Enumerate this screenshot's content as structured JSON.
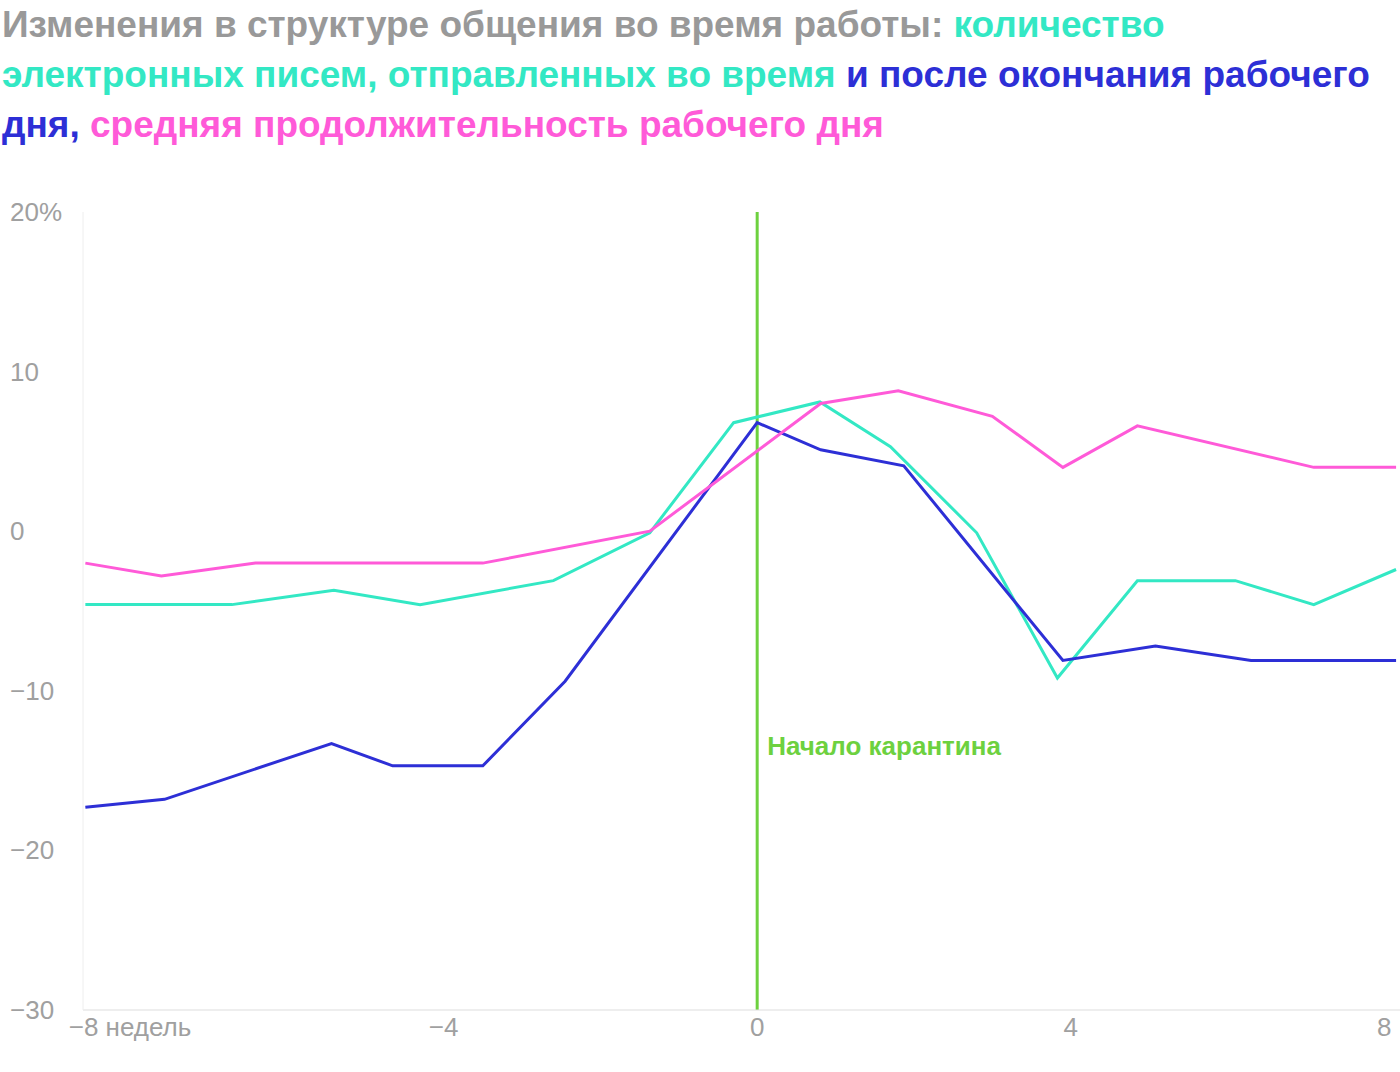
{
  "chart_data": {
    "type": "line",
    "title": "Изменения в структуре общения во время работы:",
    "series": [
      {
        "name": "количество электронных писем, отправленных во время",
        "color": "#33e8c4",
        "x": [
          -8.57,
          -6.7,
          -5.4,
          -4.3,
          -2.6,
          -1.37,
          -0.3,
          0.8,
          1.7,
          2.8,
          3.83,
          4.85,
          6.1,
          7.1,
          8.15
        ],
        "values": [
          -4.6,
          -4.6,
          -3.7,
          -4.6,
          -3.1,
          -0.1,
          6.8,
          8.1,
          5.3,
          -0.1,
          -9.2,
          -3.1,
          -3.1,
          -4.6,
          -2.4
        ]
      },
      {
        "name": "и после окончания рабочего дня,",
        "color": "#2d2fd6",
        "x": [
          -8.57,
          -7.56,
          -5.43,
          -4.65,
          -3.5,
          -2.45,
          0,
          0.81,
          1.87,
          3.9,
          5.08,
          6.3,
          8.15
        ],
        "values": [
          -17.3,
          -16.8,
          -13.3,
          -14.7,
          -14.7,
          -9.4,
          6.8,
          5.1,
          4.1,
          -8.1,
          -7.2,
          -8.1,
          -8.1
        ]
      },
      {
        "name": "средняя продолжительность рабочего дня",
        "color": "#ff5ad8",
        "x": [
          -8.57,
          -7.6,
          -6.4,
          -3.5,
          -1.37,
          0.81,
          1.8,
          3.0,
          3.9,
          4.85,
          7.1,
          8.15
        ],
        "values": [
          -2.0,
          -2.8,
          -2.0,
          -2.0,
          0,
          8.0,
          8.8,
          7.2,
          4.0,
          6.6,
          4.0,
          4.0
        ]
      }
    ],
    "xlim": [
      -8.6,
      8.2
    ],
    "xticks": [
      {
        "value": -8,
        "label": "−8 недель"
      },
      {
        "value": -4,
        "label": "−4"
      },
      0,
      4,
      8
    ],
    "ylim": [
      -30,
      20
    ],
    "yticks": [
      {
        "value": 20,
        "label": "20%"
      },
      10,
      0,
      {
        "value": -10,
        "label": "−10"
      },
      {
        "value": -20,
        "label": "−20"
      },
      {
        "value": -30,
        "label": "−30"
      }
    ],
    "grid": false,
    "annotations": [
      {
        "text": "Начало карантина",
        "x": 0,
        "color": "#6dd13f"
      }
    ]
  }
}
